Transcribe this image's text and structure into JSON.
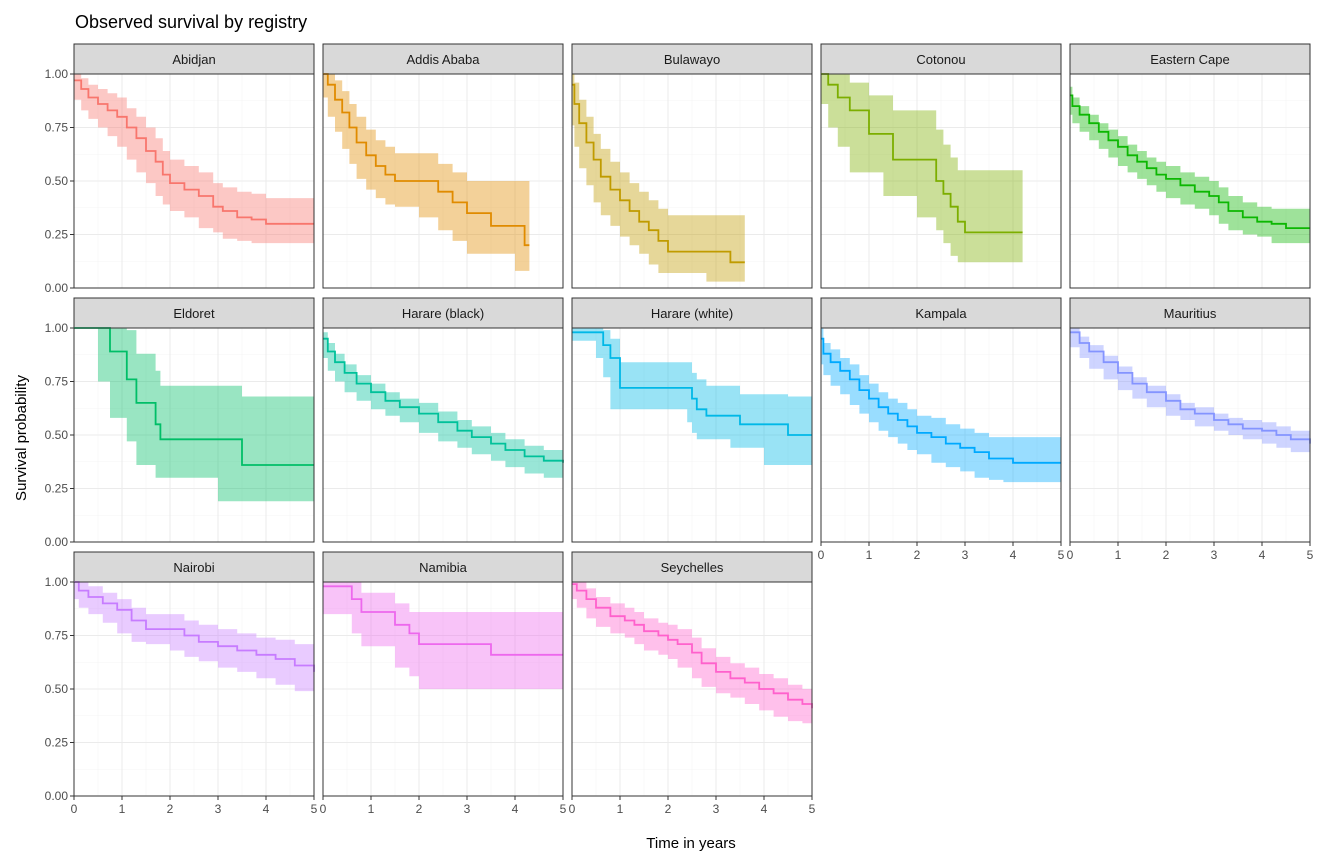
{
  "chart_data": {
    "type": "line",
    "title": "Observed survival by registry",
    "xlabel": "Time in years",
    "ylabel": "Survival probability",
    "xlim": [
      0,
      5
    ],
    "ylim": [
      0,
      1
    ],
    "x_ticks": [
      "0",
      "1",
      "2",
      "3",
      "4",
      "5"
    ],
    "y_ticks": [
      "0.00",
      "0.25",
      "0.50",
      "0.75",
      "1.00"
    ],
    "grid": true,
    "legend": "none",
    "facets": [
      {
        "name": "Abidjan",
        "color": "#F8766D",
        "x": [
          0,
          0.15,
          0.3,
          0.5,
          0.7,
          0.9,
          1.1,
          1.3,
          1.5,
          1.7,
          1.85,
          2.0,
          2.3,
          2.6,
          2.9,
          3.1,
          3.4,
          3.7,
          4.0,
          5.0
        ],
        "y": [
          0.97,
          0.93,
          0.89,
          0.86,
          0.83,
          0.8,
          0.75,
          0.7,
          0.64,
          0.59,
          0.53,
          0.49,
          0.46,
          0.43,
          0.38,
          0.36,
          0.33,
          0.32,
          0.3,
          0.3
        ],
        "lower": [
          0.93,
          0.88,
          0.83,
          0.79,
          0.75,
          0.71,
          0.66,
          0.6,
          0.54,
          0.49,
          0.43,
          0.39,
          0.36,
          0.33,
          0.28,
          0.26,
          0.23,
          0.22,
          0.21,
          0.21
        ],
        "upper": [
          1.0,
          0.98,
          0.95,
          0.93,
          0.91,
          0.89,
          0.84,
          0.8,
          0.75,
          0.7,
          0.64,
          0.6,
          0.57,
          0.54,
          0.49,
          0.47,
          0.45,
          0.44,
          0.42,
          0.42
        ]
      },
      {
        "name": "Addis Ababa",
        "color": "#E08B00",
        "x": [
          0,
          0.1,
          0.25,
          0.4,
          0.55,
          0.7,
          0.9,
          1.1,
          1.3,
          1.5,
          2.0,
          2.4,
          2.7,
          3.0,
          3.5,
          4.0,
          4.2,
          4.3
        ],
        "y": [
          1.0,
          0.95,
          0.88,
          0.82,
          0.75,
          0.68,
          0.62,
          0.57,
          0.53,
          0.5,
          0.5,
          0.45,
          0.4,
          0.35,
          0.29,
          0.29,
          0.2,
          0.2
        ],
        "lower": [
          0.97,
          0.89,
          0.8,
          0.73,
          0.65,
          0.58,
          0.51,
          0.46,
          0.42,
          0.39,
          0.38,
          0.33,
          0.27,
          0.22,
          0.16,
          0.16,
          0.08,
          0.08
        ],
        "upper": [
          1.0,
          1.0,
          0.97,
          0.92,
          0.86,
          0.8,
          0.74,
          0.69,
          0.66,
          0.63,
          0.63,
          0.58,
          0.54,
          0.5,
          0.5,
          0.5,
          0.5,
          0.5
        ]
      },
      {
        "name": "Bulawayo",
        "color": "#C09B00",
        "x": [
          0,
          0.05,
          0.15,
          0.3,
          0.45,
          0.6,
          0.8,
          1.0,
          1.2,
          1.4,
          1.6,
          1.8,
          2.0,
          2.3,
          2.8,
          3.3,
          3.6
        ],
        "y": [
          0.95,
          0.86,
          0.77,
          0.68,
          0.6,
          0.52,
          0.46,
          0.41,
          0.36,
          0.31,
          0.27,
          0.22,
          0.17,
          0.17,
          0.17,
          0.12,
          0.12
        ],
        "lower": [
          0.87,
          0.76,
          0.66,
          0.56,
          0.48,
          0.4,
          0.34,
          0.29,
          0.24,
          0.2,
          0.16,
          0.11,
          0.07,
          0.07,
          0.07,
          0.03,
          0.03
        ],
        "upper": [
          1.0,
          0.96,
          0.88,
          0.8,
          0.72,
          0.65,
          0.59,
          0.54,
          0.49,
          0.45,
          0.41,
          0.37,
          0.34,
          0.34,
          0.34,
          0.34,
          0.34
        ]
      },
      {
        "name": "Cotonou",
        "color": "#7CAE00",
        "x": [
          0,
          0.15,
          0.35,
          0.6,
          1.0,
          1.3,
          1.5,
          2.0,
          2.4,
          2.55,
          2.7,
          2.85,
          3.0,
          4.2
        ],
        "y": [
          1.0,
          0.95,
          0.89,
          0.83,
          0.72,
          0.72,
          0.6,
          0.6,
          0.5,
          0.44,
          0.38,
          0.31,
          0.26,
          0.26
        ],
        "lower": [
          0.95,
          0.86,
          0.75,
          0.66,
          0.54,
          0.54,
          0.43,
          0.43,
          0.33,
          0.27,
          0.21,
          0.15,
          0.12,
          0.12
        ],
        "upper": [
          1.0,
          1.0,
          1.0,
          0.96,
          0.9,
          0.9,
          0.83,
          0.83,
          0.74,
          0.67,
          0.61,
          0.55,
          0.55,
          0.55
        ]
      },
      {
        "name": "Eastern Cape",
        "color": "#0CB702",
        "x": [
          0,
          0.05,
          0.2,
          0.4,
          0.6,
          0.8,
          1.0,
          1.2,
          1.4,
          1.6,
          1.8,
          2.0,
          2.3,
          2.6,
          2.9,
          3.1,
          3.3,
          3.6,
          3.9,
          4.2,
          4.5,
          5.0
        ],
        "y": [
          0.9,
          0.85,
          0.81,
          0.77,
          0.73,
          0.69,
          0.66,
          0.62,
          0.59,
          0.56,
          0.53,
          0.51,
          0.48,
          0.45,
          0.43,
          0.4,
          0.36,
          0.33,
          0.31,
          0.3,
          0.28,
          0.28
        ],
        "lower": [
          0.86,
          0.81,
          0.77,
          0.73,
          0.69,
          0.65,
          0.61,
          0.57,
          0.54,
          0.51,
          0.48,
          0.45,
          0.42,
          0.39,
          0.37,
          0.34,
          0.3,
          0.27,
          0.25,
          0.24,
          0.21,
          0.21
        ],
        "upper": [
          0.94,
          0.89,
          0.85,
          0.81,
          0.77,
          0.74,
          0.71,
          0.67,
          0.64,
          0.61,
          0.59,
          0.57,
          0.54,
          0.52,
          0.5,
          0.47,
          0.43,
          0.4,
          0.38,
          0.37,
          0.37,
          0.37
        ]
      },
      {
        "name": "Eldoret",
        "color": "#00BE67",
        "x": [
          0,
          0.5,
          0.75,
          1.1,
          1.3,
          1.7,
          1.8,
          3.0,
          3.5,
          5.0
        ],
        "y": [
          1.0,
          1.0,
          0.89,
          0.76,
          0.65,
          0.55,
          0.48,
          0.48,
          0.36,
          0.36
        ],
        "lower": [
          1.0,
          1.0,
          0.75,
          0.58,
          0.47,
          0.36,
          0.3,
          0.3,
          0.19,
          0.19
        ],
        "upper": [
          1.0,
          1.0,
          1.0,
          0.99,
          0.88,
          0.8,
          0.73,
          0.73,
          0.68,
          0.68
        ]
      },
      {
        "name": "Harare (black)",
        "color": "#00C19A",
        "x": [
          0,
          0.1,
          0.25,
          0.45,
          0.7,
          1.0,
          1.3,
          1.6,
          2.0,
          2.4,
          2.8,
          3.1,
          3.5,
          3.8,
          4.2,
          4.6,
          5.0
        ],
        "y": [
          0.95,
          0.89,
          0.84,
          0.79,
          0.74,
          0.7,
          0.66,
          0.63,
          0.6,
          0.56,
          0.52,
          0.49,
          0.46,
          0.43,
          0.4,
          0.38,
          0.37
        ],
        "lower": [
          0.92,
          0.86,
          0.8,
          0.75,
          0.7,
          0.66,
          0.62,
          0.59,
          0.56,
          0.51,
          0.47,
          0.44,
          0.41,
          0.38,
          0.35,
          0.32,
          0.3
        ],
        "upper": [
          0.98,
          0.93,
          0.88,
          0.83,
          0.78,
          0.74,
          0.7,
          0.67,
          0.65,
          0.61,
          0.57,
          0.54,
          0.51,
          0.48,
          0.45,
          0.43,
          0.43
        ]
      },
      {
        "name": "Harare (white)",
        "color": "#00B8E7",
        "x": [
          0,
          0.5,
          0.65,
          0.8,
          1.0,
          2.0,
          2.4,
          2.5,
          2.6,
          2.8,
          3.3,
          3.5,
          4.0,
          4.5,
          5.0
        ],
        "y": [
          0.98,
          0.98,
          0.92,
          0.86,
          0.72,
          0.72,
          0.72,
          0.67,
          0.62,
          0.59,
          0.59,
          0.55,
          0.55,
          0.5,
          0.5
        ],
        "lower": [
          0.94,
          0.94,
          0.86,
          0.77,
          0.62,
          0.62,
          0.62,
          0.56,
          0.51,
          0.48,
          0.48,
          0.44,
          0.44,
          0.36,
          0.36
        ],
        "upper": [
          1.0,
          1.0,
          0.99,
          0.95,
          0.84,
          0.84,
          0.84,
          0.79,
          0.76,
          0.73,
          0.73,
          0.69,
          0.69,
          0.68,
          0.68
        ]
      },
      {
        "name": "Kampala",
        "color": "#00A9FF",
        "x": [
          0,
          0.05,
          0.2,
          0.4,
          0.6,
          0.8,
          1.0,
          1.2,
          1.4,
          1.6,
          1.8,
          2.0,
          2.3,
          2.6,
          2.9,
          3.2,
          3.5,
          3.8,
          4.0,
          5.0
        ],
        "y": [
          0.95,
          0.88,
          0.84,
          0.8,
          0.76,
          0.71,
          0.67,
          0.63,
          0.6,
          0.57,
          0.54,
          0.51,
          0.49,
          0.46,
          0.44,
          0.42,
          0.39,
          0.39,
          0.37,
          0.37
        ],
        "lower": [
          0.9,
          0.83,
          0.78,
          0.73,
          0.69,
          0.64,
          0.6,
          0.56,
          0.52,
          0.49,
          0.46,
          0.43,
          0.41,
          0.37,
          0.35,
          0.33,
          0.3,
          0.29,
          0.28,
          0.28
        ],
        "upper": [
          1.0,
          0.93,
          0.9,
          0.86,
          0.83,
          0.78,
          0.74,
          0.7,
          0.67,
          0.65,
          0.62,
          0.59,
          0.58,
          0.55,
          0.53,
          0.51,
          0.49,
          0.49,
          0.49,
          0.49
        ]
      },
      {
        "name": "Mauritius",
        "color": "#8494FF",
        "x": [
          0,
          0.2,
          0.4,
          0.7,
          1.0,
          1.3,
          1.6,
          2.0,
          2.3,
          2.6,
          3.0,
          3.3,
          3.6,
          4.0,
          4.3,
          4.6,
          5.0
        ],
        "y": [
          0.98,
          0.93,
          0.89,
          0.84,
          0.79,
          0.74,
          0.7,
          0.66,
          0.62,
          0.6,
          0.57,
          0.55,
          0.53,
          0.52,
          0.5,
          0.48,
          0.46
        ],
        "lower": [
          0.96,
          0.91,
          0.86,
          0.81,
          0.76,
          0.71,
          0.67,
          0.63,
          0.59,
          0.57,
          0.54,
          0.52,
          0.5,
          0.48,
          0.46,
          0.44,
          0.42
        ],
        "upper": [
          1.0,
          0.96,
          0.92,
          0.87,
          0.82,
          0.77,
          0.73,
          0.69,
          0.65,
          0.63,
          0.6,
          0.58,
          0.57,
          0.56,
          0.54,
          0.52,
          0.5
        ]
      },
      {
        "name": "Nairobi",
        "color": "#C77CFF",
        "x": [
          0,
          0.1,
          0.3,
          0.6,
          0.9,
          1.2,
          1.5,
          2.0,
          2.3,
          2.6,
          3.0,
          3.4,
          3.8,
          4.2,
          4.6,
          5.0
        ],
        "y": [
          1.0,
          0.96,
          0.93,
          0.9,
          0.87,
          0.82,
          0.78,
          0.78,
          0.75,
          0.72,
          0.7,
          0.68,
          0.66,
          0.64,
          0.61,
          0.58
        ],
        "lower": [
          0.98,
          0.92,
          0.88,
          0.85,
          0.81,
          0.76,
          0.72,
          0.71,
          0.68,
          0.65,
          0.63,
          0.6,
          0.58,
          0.55,
          0.52,
          0.49
        ],
        "upper": [
          1.0,
          1.0,
          0.98,
          0.95,
          0.92,
          0.88,
          0.85,
          0.85,
          0.82,
          0.8,
          0.78,
          0.76,
          0.74,
          0.73,
          0.71,
          0.69
        ]
      },
      {
        "name": "Namibia",
        "color": "#ED68ED",
        "x": [
          0,
          0.6,
          0.8,
          1.5,
          1.8,
          2.0,
          3.5,
          5.0
        ],
        "y": [
          0.98,
          0.92,
          0.86,
          0.8,
          0.76,
          0.71,
          0.66,
          0.66
        ],
        "lower": [
          0.93,
          0.85,
          0.76,
          0.7,
          0.6,
          0.56,
          0.5,
          0.5
        ],
        "upper": [
          1.0,
          1.0,
          0.95,
          0.9,
          0.86,
          0.86,
          0.86,
          0.86
        ]
      },
      {
        "name": "Seychelles",
        "color": "#FF61CC",
        "x": [
          0,
          0.1,
          0.3,
          0.5,
          0.8,
          1.1,
          1.3,
          1.5,
          1.8,
          2.0,
          2.2,
          2.5,
          2.7,
          3.0,
          3.3,
          3.6,
          3.9,
          4.2,
          4.5,
          4.8,
          5.0
        ],
        "y": [
          0.99,
          0.96,
          0.92,
          0.88,
          0.84,
          0.82,
          0.8,
          0.77,
          0.75,
          0.73,
          0.71,
          0.67,
          0.62,
          0.58,
          0.55,
          0.53,
          0.5,
          0.48,
          0.45,
          0.43,
          0.41
        ],
        "lower": [
          0.96,
          0.92,
          0.88,
          0.83,
          0.79,
          0.76,
          0.74,
          0.71,
          0.68,
          0.66,
          0.64,
          0.6,
          0.55,
          0.51,
          0.48,
          0.46,
          0.43,
          0.4,
          0.37,
          0.35,
          0.34
        ],
        "upper": [
          1.0,
          1.0,
          0.97,
          0.93,
          0.9,
          0.88,
          0.86,
          0.83,
          0.81,
          0.8,
          0.78,
          0.74,
          0.69,
          0.65,
          0.62,
          0.6,
          0.57,
          0.55,
          0.52,
          0.5,
          0.49
        ]
      }
    ]
  }
}
